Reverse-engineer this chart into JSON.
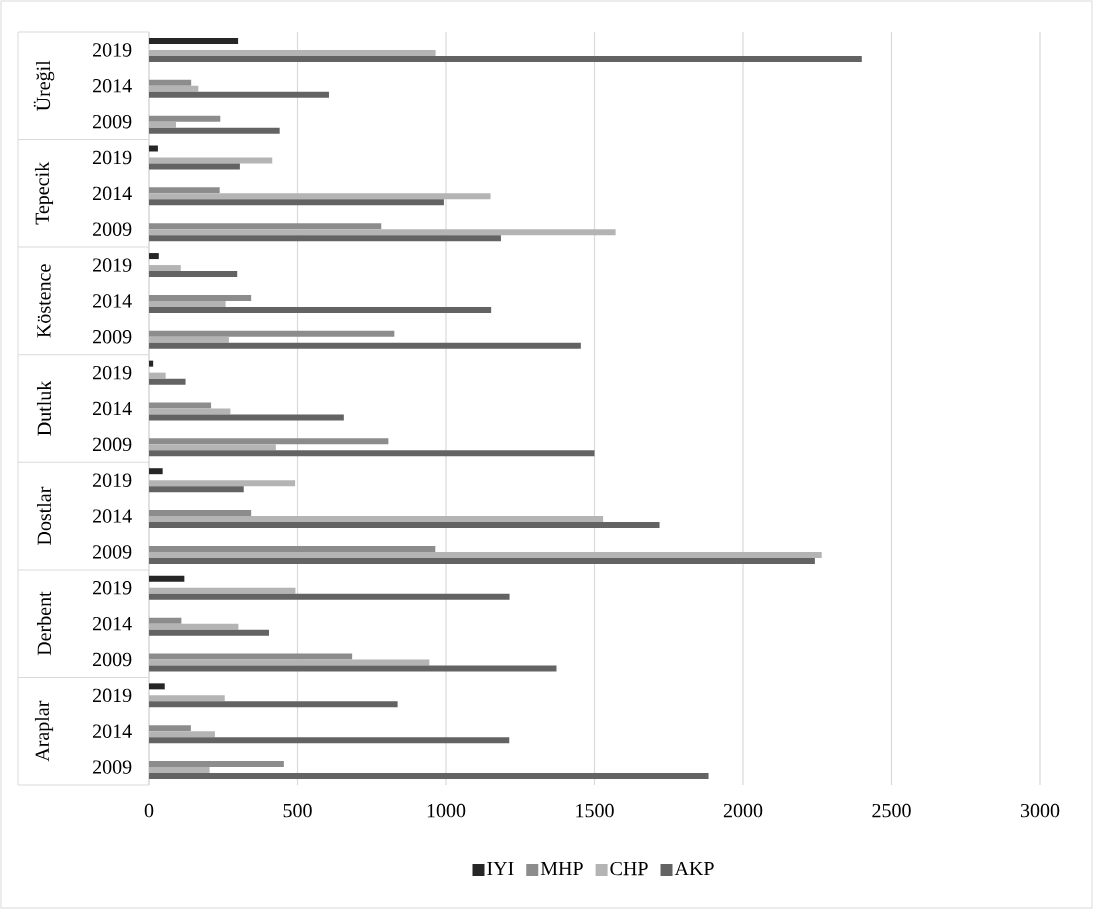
{
  "chart_data": {
    "type": "bar",
    "orientation": "horizontal",
    "categories": [
      "2019",
      "2014",
      "2009",
      "2019",
      "2014",
      "2009",
      "2019",
      "2014",
      "2009",
      "2019",
      "2014",
      "2009",
      "2019",
      "2014",
      "2009",
      "2019",
      "2014",
      "2009",
      "2019",
      "2014",
      "2009"
    ],
    "annotations": [
      "Üreğil",
      "Tepecik",
      "Köstence",
      "Dutluk",
      "Dostlar",
      "Derbent",
      "Araplar"
    ],
    "series": [
      {
        "name": "IYI",
        "color": "#262626",
        "values": [
          300,
          null,
          null,
          30,
          null,
          null,
          33,
          null,
          null,
          14,
          null,
          null,
          46,
          null,
          null,
          119,
          null,
          null,
          53,
          null,
          null
        ]
      },
      {
        "name": "MHP",
        "color": "#8c8c8c",
        "values": [
          null,
          142,
          240,
          null,
          238,
          782,
          null,
          344,
          826,
          null,
          209,
          806,
          null,
          344,
          964,
          null,
          109,
          684,
          null,
          141,
          454
        ]
      },
      {
        "name": "CHP",
        "color": "#b4b4b4",
        "values": [
          965,
          166,
          91,
          415,
          1150,
          1571,
          107,
          258,
          269,
          56,
          274,
          427,
          492,
          1529,
          2265,
          493,
          301,
          944,
          255,
          222,
          204
        ]
      },
      {
        "name": "AKP",
        "color": "#636363",
        "values": [
          2400,
          606,
          440,
          306,
          993,
          1185,
          297,
          1152,
          1454,
          123,
          656,
          1500,
          319,
          1719,
          2242,
          1214,
          404,
          1372,
          837,
          1213,
          1884
        ]
      }
    ],
    "xlim": [
      0,
      3000
    ],
    "xticks": [
      0,
      500,
      1000,
      1500,
      2000,
      2500,
      3000
    ],
    "grid": "x",
    "legend": "bottom"
  }
}
